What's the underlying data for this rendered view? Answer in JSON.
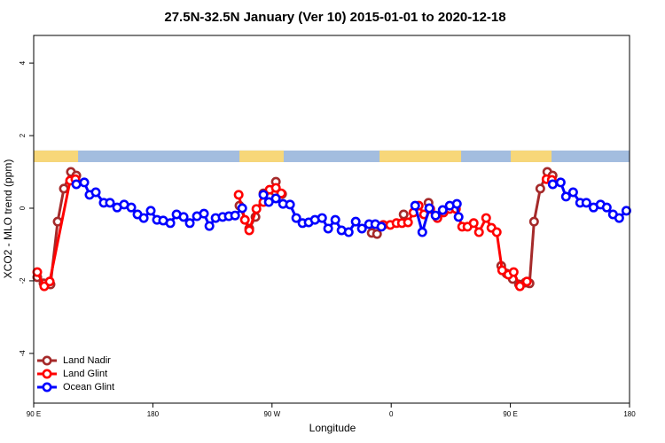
{
  "chart_data": {
    "type": "line",
    "title": "27.5N-32.5N January (Ver 10)   2015-01-01 to 2020-12-18",
    "x_label": "Longitude",
    "y_label": "XCO2 - MLO trend (ppm)",
    "xlim": [
      90,
      540
    ],
    "xticks": [
      {
        "value": 90,
        "label": "90 E"
      },
      180,
      {
        "value": 270,
        "label": "90 W"
      },
      {
        "value": 360,
        "label": "0"
      },
      {
        "value": 450,
        "label": "90 E"
      },
      {
        "value": 540,
        "label": "180"
      }
    ],
    "ylim": [
      -5.37,
      4.76
    ],
    "yticks": [
      -4,
      -2,
      0,
      2,
      4
    ],
    "legend": "bottom-left",
    "surface_strip": {
      "ylim": [
        1.27,
        1.59
      ],
      "ocean_color": "#a3bddf",
      "land_color": "#f7d779",
      "land": [
        [
          90,
          123.5
        ],
        [
          245.4,
          278.8
        ],
        [
          351.2,
          412.8
        ],
        [
          450.3,
          481.1
        ]
      ]
    },
    "series": [
      {
        "name": "Land Nadir",
        "color": "#a52a2a",
        "x": [
          92.7,
          97.4,
          102.7,
          108.1,
          112.8,
          118.1,
          122.2,
          null,
          245.4,
          252.8,
          257.5,
          263.5,
          268.2,
          272.9,
          277.6,
          null,
          345.3,
          349.3,
          null,
          369.4,
          null,
          388.2,
          null,
          443.1,
          447.1,
          451.8,
          456.5,
          461.2,
          464.5,
          467.9,
          472.6,
          477.9,
          481.9
        ],
        "values": [
          -1.9,
          -2.07,
          -2.1,
          -0.37,
          0.54,
          1.0,
          0.9,
          null,
          0.07,
          -0.56,
          -0.24,
          0.41,
          0.32,
          0.73,
          0.39,
          null,
          -0.68,
          -0.71,
          null,
          -0.17,
          null,
          0.15,
          null,
          -1.59,
          -1.8,
          -1.95,
          -2.1,
          -2.05,
          -2.07,
          -0.37,
          0.54,
          1.0,
          0.9
        ]
      },
      {
        "name": "Land Glint",
        "color": "#ff0000",
        "x": [
          92.7,
          98,
          102.1,
          117.5,
          121.5,
          null,
          244.8,
          249.5,
          252.8,
          258.2,
          263.5,
          268.2,
          272.9,
          276.9,
          null,
          354,
          359.3,
          364,
          368.1,
          372.7,
          376.8,
          380.8,
          384.8,
          389.5,
          394.9,
          399.5,
          404.2,
          408.9,
          413.6,
          417.6,
          422.3,
          426.3,
          431.7,
          435.7,
          439.7,
          443.8,
          448.5,
          452.5,
          457.2,
          462.5,
          null,
          477.3,
          481.3
        ],
        "values": [
          -1.76,
          -2.15,
          -2.02,
          0.76,
          0.8,
          null,
          0.37,
          -0.32,
          -0.61,
          -0.02,
          0.17,
          0.51,
          0.56,
          0.41,
          null,
          -0.46,
          -0.46,
          -0.41,
          -0.41,
          -0.39,
          -0.12,
          0.07,
          -0.17,
          -0.02,
          -0.27,
          -0.12,
          -0.02,
          -0.02,
          -0.51,
          -0.51,
          -0.41,
          -0.66,
          -0.27,
          -0.54,
          -0.66,
          -1.71,
          -1.83,
          -1.76,
          -2.15,
          -2.02,
          null,
          0.8,
          0.78
        ]
      },
      {
        "name": "Ocean Glint",
        "color": "#0000ff",
        "x": [
          122.2,
          128.2,
          132.2,
          136.9,
          142.9,
          147.6,
          153,
          158.3,
          163.7,
          168.4,
          173.1,
          178.4,
          183.1,
          187.8,
          193.2,
          197.9,
          203.2,
          207.9,
          213.3,
          218.6,
          222.7,
          227.4,
          232.7,
          237.4,
          242.1,
          247.5,
          null,
          263.5,
          267.6,
          272.9,
          278.3,
          283.6,
          288.3,
          293,
          297.7,
          302.4,
          307.8,
          312.4,
          317.8,
          322.5,
          327.9,
          333.2,
          337.9,
          343.3,
          348,
          352.6,
          null,
          378.1,
          383.5,
          388.8,
          393.5,
          398.9,
          404.2,
          409.6,
          410.9,
          null,
          482,
          488,
          492,
          497.4,
          502.7,
          507.4,
          512.8,
          518.1,
          522.8,
          527.5,
          532.2,
          537.6
        ],
        "values": [
          0.66,
          0.71,
          0.37,
          0.44,
          0.15,
          0.15,
          0.02,
          0.1,
          0.02,
          -0.17,
          -0.27,
          -0.07,
          -0.32,
          -0.34,
          -0.41,
          -0.17,
          -0.24,
          -0.41,
          -0.22,
          -0.15,
          -0.49,
          -0.27,
          -0.24,
          -0.22,
          -0.2,
          0.0,
          null,
          0.37,
          0.17,
          0.27,
          0.12,
          0.1,
          -0.27,
          -0.41,
          -0.39,
          -0.32,
          -0.27,
          -0.56,
          -0.32,
          -0.61,
          -0.66,
          -0.37,
          -0.56,
          -0.44,
          -0.44,
          -0.51,
          null,
          0.07,
          -0.66,
          0.0,
          -0.2,
          -0.05,
          0.07,
          0.12,
          -0.24,
          null,
          0.66,
          0.71,
          0.32,
          0.44,
          0.15,
          0.15,
          0.02,
          0.1,
          0.02,
          -0.17,
          -0.27,
          -0.07
        ]
      }
    ]
  }
}
